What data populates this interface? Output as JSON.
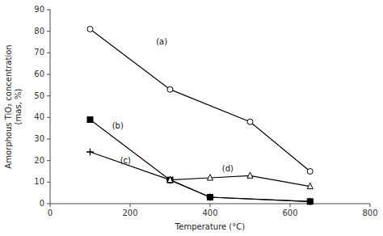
{
  "chart_data": {
    "type": "line",
    "title": "",
    "x_label": "Temperature (°C)",
    "y_label": "Amorphous TiO₂ concentration\n(mas, %)",
    "xlim": [
      0,
      800
    ],
    "ylim": [
      0,
      90
    ],
    "xticks": [
      0,
      200,
      400,
      600,
      800
    ],
    "yticks": [
      0,
      10,
      20,
      30,
      40,
      50,
      60,
      70,
      80,
      90
    ],
    "grid": false,
    "series": [
      {
        "x": [
          100,
          300,
          500,
          650
        ],
        "values": [
          81,
          53,
          38,
          15
        ],
        "marker": "circle-open",
        "line_style": "solid",
        "color": "black"
      },
      {
        "x": [
          100,
          300,
          400,
          650
        ],
        "values": [
          39,
          11,
          3,
          1
        ],
        "marker": "square",
        "line_style": "solid",
        "color": "black"
      },
      {
        "x": [
          100,
          300,
          400,
          650
        ],
        "values": [
          24,
          11,
          3,
          1
        ],
        "marker": "plus",
        "line_style": "solid",
        "color": "black"
      },
      {
        "x": [
          300,
          400,
          500,
          650
        ],
        "values": [
          11,
          12,
          13,
          8
        ],
        "marker": "triangle-open",
        "line_style": "solid",
        "color": "black"
      }
    ],
    "annotations": [
      {
        "text": "(a)",
        "x": 265,
        "y": 75
      },
      {
        "text": "(b)",
        "x": 155,
        "y": 36
      },
      {
        "text": "(c)",
        "x": 175,
        "y": 20
      },
      {
        "text": "(d)",
        "x": 430,
        "y": 16
      }
    ]
  }
}
